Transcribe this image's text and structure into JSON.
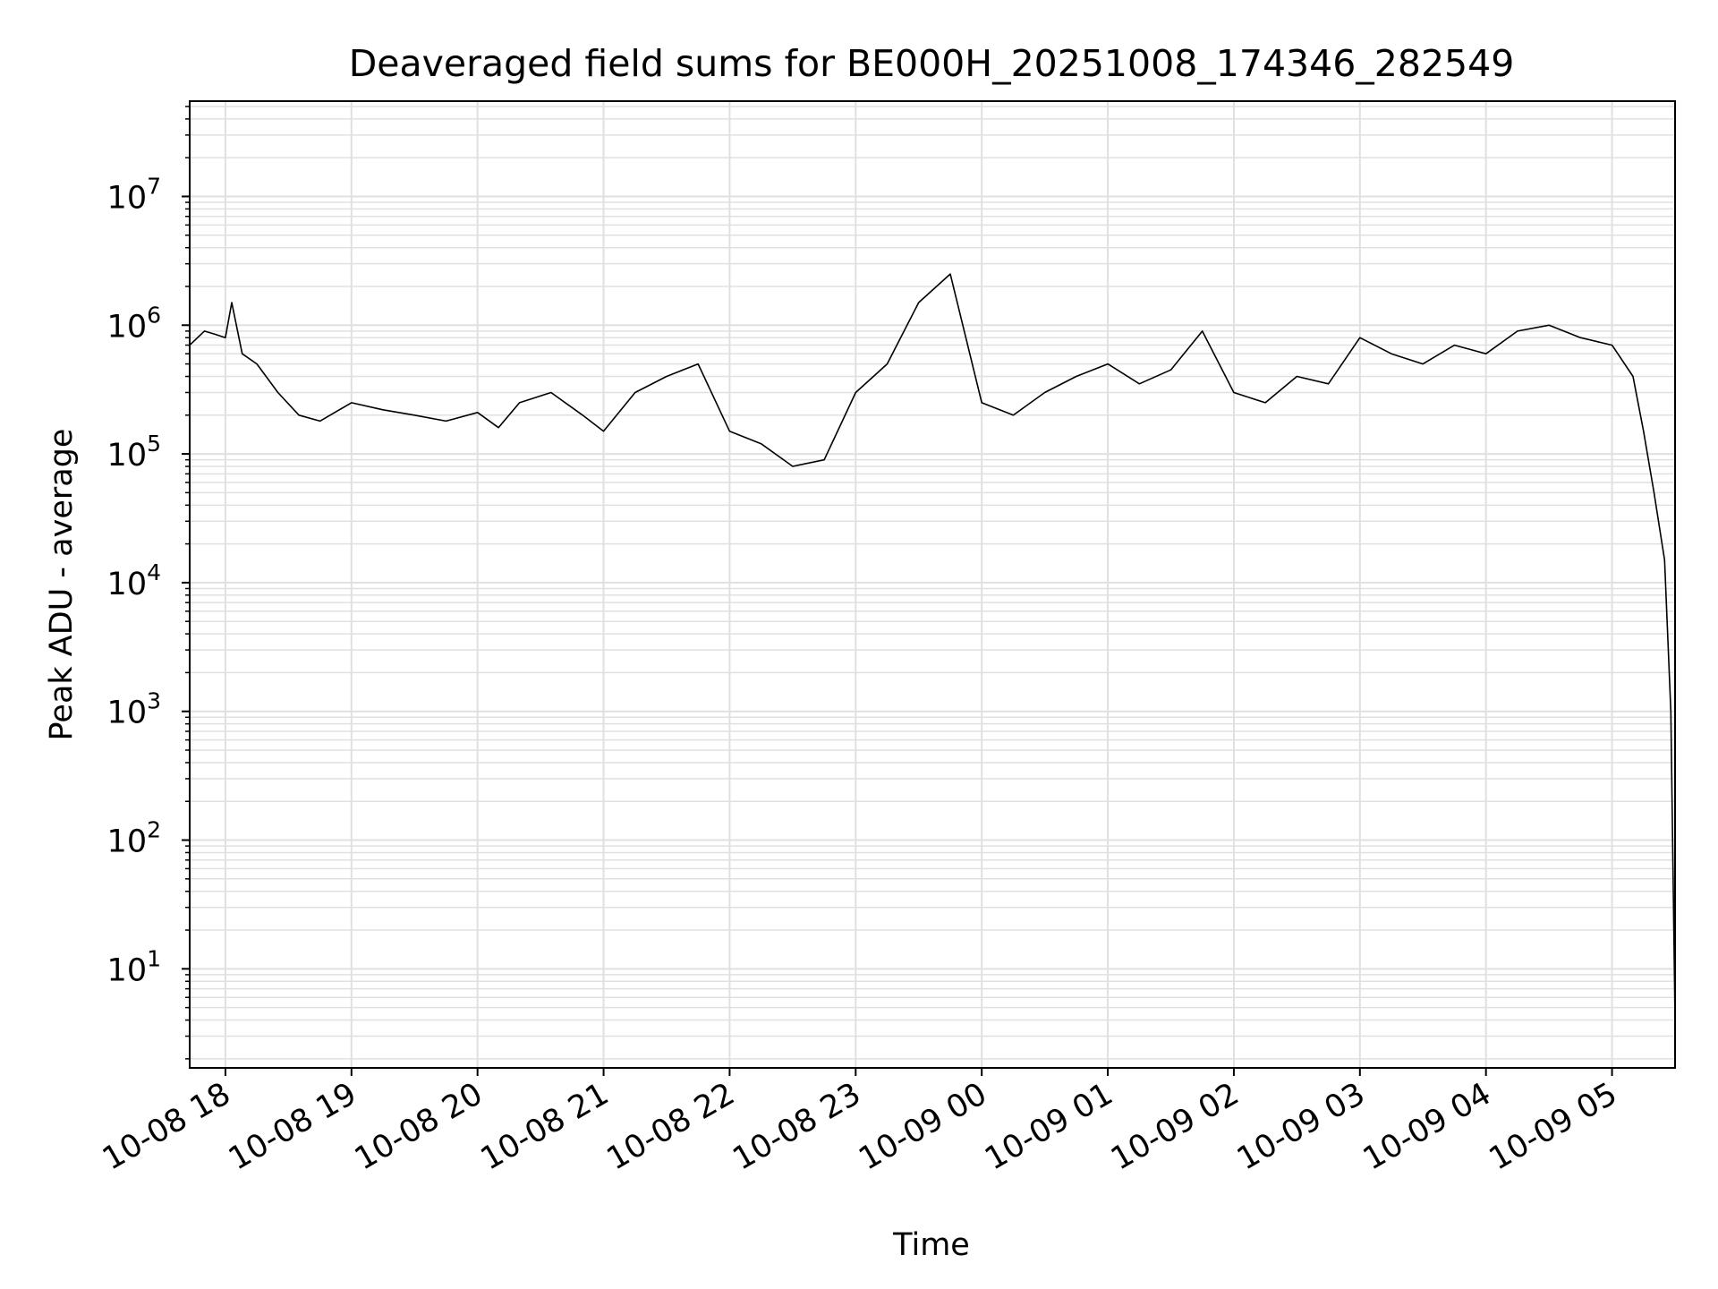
{
  "chart_data": {
    "type": "line",
    "title": "Deaveraged field sums for BE000H_20251008_174346_282549",
    "xlabel": "Time",
    "ylabel": "Peak ADU - average",
    "y_scale": "log",
    "ylim": [
      1.7,
      55000000
    ],
    "xlim": [
      "2025-10-08 17:43",
      "2025-10-09 05:30"
    ],
    "grid": true,
    "line_color": "#000000",
    "grid_color": "#e0e0e0",
    "x_ticks": [
      {
        "value": "2025-10-08 18:00",
        "label": "10-08 18"
      },
      {
        "value": "2025-10-08 19:00",
        "label": "10-08 19"
      },
      {
        "value": "2025-10-08 20:00",
        "label": "10-08 20"
      },
      {
        "value": "2025-10-08 21:00",
        "label": "10-08 21"
      },
      {
        "value": "2025-10-08 22:00",
        "label": "10-08 22"
      },
      {
        "value": "2025-10-08 23:00",
        "label": "10-08 23"
      },
      {
        "value": "2025-10-09 00:00",
        "label": "10-09 00"
      },
      {
        "value": "2025-10-09 01:00",
        "label": "10-09 01"
      },
      {
        "value": "2025-10-09 02:00",
        "label": "10-09 02"
      },
      {
        "value": "2025-10-09 03:00",
        "label": "10-09 03"
      },
      {
        "value": "2025-10-09 04:00",
        "label": "10-09 04"
      },
      {
        "value": "2025-10-09 05:00",
        "label": "10-09 05"
      }
    ],
    "y_ticks": [
      {
        "value": 10,
        "base": "10",
        "exp": "1"
      },
      {
        "value": 100,
        "base": "10",
        "exp": "2"
      },
      {
        "value": 1000,
        "base": "10",
        "exp": "3"
      },
      {
        "value": 10000,
        "base": "10",
        "exp": "4"
      },
      {
        "value": 100000,
        "base": "10",
        "exp": "5"
      },
      {
        "value": 1000000,
        "base": "10",
        "exp": "6"
      },
      {
        "value": 10000000,
        "base": "10",
        "exp": "7"
      }
    ],
    "series": [
      {
        "x": [
          "2025-10-08 17:43",
          "2025-10-08 17:50",
          "2025-10-08 17:55",
          "2025-10-08 18:00",
          "2025-10-08 18:03",
          "2025-10-08 18:08",
          "2025-10-08 18:15",
          "2025-10-08 18:25",
          "2025-10-08 18:35",
          "2025-10-08 18:45",
          "2025-10-08 19:00",
          "2025-10-08 19:15",
          "2025-10-08 19:30",
          "2025-10-08 19:45",
          "2025-10-08 20:00",
          "2025-10-08 20:10",
          "2025-10-08 20:20",
          "2025-10-08 20:35",
          "2025-10-08 20:50",
          "2025-10-08 21:00",
          "2025-10-08 21:15",
          "2025-10-08 21:30",
          "2025-10-08 21:45",
          "2025-10-08 22:00",
          "2025-10-08 22:15",
          "2025-10-08 22:30",
          "2025-10-08 22:45",
          "2025-10-08 23:00",
          "2025-10-08 23:15",
          "2025-10-08 23:30",
          "2025-10-08 23:45",
          "2025-10-09 00:00",
          "2025-10-09 00:15",
          "2025-10-09 00:30",
          "2025-10-09 00:45",
          "2025-10-09 01:00",
          "2025-10-09 01:15",
          "2025-10-09 01:30",
          "2025-10-09 01:45",
          "2025-10-09 02:00",
          "2025-10-09 02:15",
          "2025-10-09 02:30",
          "2025-10-09 02:45",
          "2025-10-09 03:00",
          "2025-10-09 03:15",
          "2025-10-09 03:30",
          "2025-10-09 03:45",
          "2025-10-09 04:00",
          "2025-10-09 04:15",
          "2025-10-09 04:30",
          "2025-10-09 04:45",
          "2025-10-09 05:00",
          "2025-10-09 05:10",
          "2025-10-09 05:15",
          "2025-10-09 05:20",
          "2025-10-09 05:25",
          "2025-10-09 05:28",
          "2025-10-09 05:30"
        ],
        "y": [
          700000,
          900000,
          850000,
          800000,
          1500000,
          600000,
          500000,
          300000,
          200000,
          180000,
          250000,
          220000,
          200000,
          180000,
          210000,
          160000,
          250000,
          300000,
          200000,
          150000,
          300000,
          400000,
          500000,
          150000,
          120000,
          80000,
          90000,
          300000,
          500000,
          1500000,
          2500000,
          250000,
          200000,
          300000,
          400000,
          500000,
          350000,
          450000,
          900000,
          300000,
          250000,
          400000,
          350000,
          800000,
          600000,
          500000,
          700000,
          600000,
          900000,
          1000000,
          800000,
          700000,
          400000,
          150000,
          50000,
          15000,
          1000,
          4
        ]
      }
    ]
  }
}
